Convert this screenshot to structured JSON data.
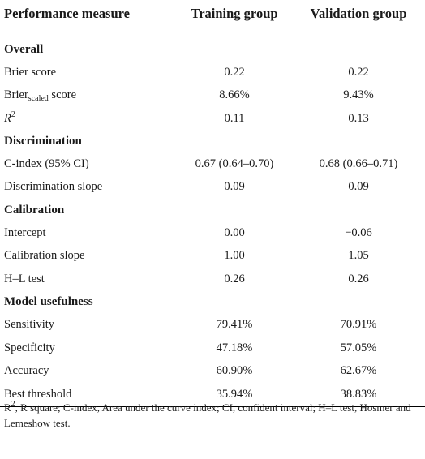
{
  "table": {
    "headers": [
      "Performance measure",
      "Training group",
      "Validation group"
    ],
    "sections": {
      "overall": "Overall",
      "discrimination": "Discrimination",
      "calibration": "Calibration",
      "usefulness": "Model usefulness"
    },
    "rows": {
      "brier": {
        "label": "Brier score",
        "training": "0.22",
        "validation": "0.22"
      },
      "brier_scaled": {
        "label_pre": "Brier",
        "label_sub": "scaled",
        "label_post": " score",
        "training": "8.66%",
        "validation": "9.43%"
      },
      "r2": {
        "label_base": "R",
        "label_sup": "2",
        "training": "0.11",
        "validation": "0.13"
      },
      "cindex": {
        "label": "C-index (95% CI)",
        "training": "0.67 (0.64–0.70)",
        "validation": "0.68 (0.66–0.71)"
      },
      "disc_slope": {
        "label": "Discrimination slope",
        "training": "0.09",
        "validation": "0.09"
      },
      "intercept": {
        "label": "Intercept",
        "training": "0.00",
        "validation": "−0.06"
      },
      "cal_slope": {
        "label": "Calibration slope",
        "training": "1.00",
        "validation": "1.05"
      },
      "hl": {
        "label": "H–L test",
        "training": "0.26",
        "validation": "0.26"
      },
      "sensitivity": {
        "label": "Sensitivity",
        "training": "79.41%",
        "validation": "70.91%"
      },
      "specificity": {
        "label": "Specificity",
        "training": "47.18%",
        "validation": "57.05%"
      },
      "accuracy": {
        "label": "Accuracy",
        "training": "60.90%",
        "validation": "62.67%"
      },
      "threshold": {
        "label": "Best threshold",
        "training": "35.94%",
        "validation": "38.83%"
      }
    }
  },
  "footnote": {
    "r_base": "R",
    "r_sup": "2",
    "text": ", R square; C-index, Area under the curve index; CI, confident interval; H–L test, Hosmer and Lemeshow test."
  }
}
